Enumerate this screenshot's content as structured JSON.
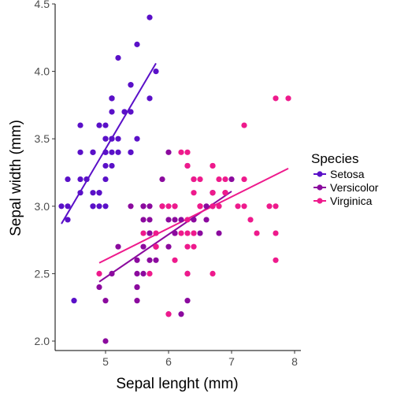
{
  "chart_data": {
    "type": "scatter",
    "title": "",
    "xlabel": "Sepal lenght (mm)",
    "ylabel": "Sepal width (mm)",
    "xlim": [
      4.2,
      8.1
    ],
    "ylim": [
      1.93,
      4.5
    ],
    "xticks": [
      "5",
      "6",
      "7",
      "8"
    ],
    "yticks": [
      "2.0",
      "2.5",
      "3.0",
      "3.5",
      "4.0",
      "4.5"
    ],
    "grid": false,
    "legend": {
      "title": "Species",
      "position": "right"
    },
    "series": [
      {
        "name": "Setosa",
        "color": "#5a10c8",
        "points": [
          [
            5.1,
            3.5
          ],
          [
            4.9,
            3.0
          ],
          [
            4.7,
            3.2
          ],
          [
            4.6,
            3.1
          ],
          [
            5.0,
            3.6
          ],
          [
            5.4,
            3.9
          ],
          [
            4.6,
            3.4
          ],
          [
            5.0,
            3.4
          ],
          [
            4.4,
            2.9
          ],
          [
            4.9,
            3.1
          ],
          [
            5.4,
            3.7
          ],
          [
            4.8,
            3.4
          ],
          [
            4.8,
            3.0
          ],
          [
            4.3,
            3.0
          ],
          [
            5.8,
            4.0
          ],
          [
            5.7,
            4.4
          ],
          [
            5.4,
            3.9
          ],
          [
            5.1,
            3.5
          ],
          [
            5.7,
            3.8
          ],
          [
            5.1,
            3.8
          ],
          [
            5.4,
            3.4
          ],
          [
            5.1,
            3.7
          ],
          [
            4.6,
            3.6
          ],
          [
            5.1,
            3.3
          ],
          [
            4.8,
            3.4
          ],
          [
            5.0,
            3.0
          ],
          [
            5.0,
            3.4
          ],
          [
            5.2,
            3.5
          ],
          [
            5.2,
            3.4
          ],
          [
            4.7,
            3.2
          ],
          [
            4.8,
            3.1
          ],
          [
            5.4,
            3.4
          ],
          [
            5.2,
            4.1
          ],
          [
            5.5,
            4.2
          ],
          [
            4.9,
            3.1
          ],
          [
            5.0,
            3.2
          ],
          [
            5.5,
            3.5
          ],
          [
            4.9,
            3.6
          ],
          [
            4.4,
            3.0
          ],
          [
            5.1,
            3.4
          ],
          [
            5.0,
            3.5
          ],
          [
            4.5,
            2.3
          ],
          [
            4.4,
            3.2
          ],
          [
            5.0,
            3.5
          ],
          [
            5.1,
            3.8
          ],
          [
            4.8,
            3.0
          ],
          [
            5.1,
            3.8
          ],
          [
            4.6,
            3.2
          ],
          [
            5.3,
            3.7
          ],
          [
            5.0,
            3.3
          ]
        ],
        "fit": [
          [
            4.3,
            2.87
          ],
          [
            5.8,
            4.06
          ]
        ]
      },
      {
        "name": "Versicolor",
        "color": "#8b0a9e",
        "points": [
          [
            7.0,
            3.2
          ],
          [
            6.4,
            3.2
          ],
          [
            6.9,
            3.1
          ],
          [
            5.5,
            2.3
          ],
          [
            6.5,
            2.8
          ],
          [
            5.7,
            2.8
          ],
          [
            6.3,
            3.3
          ],
          [
            4.9,
            2.4
          ],
          [
            6.6,
            2.9
          ],
          [
            5.2,
            2.7
          ],
          [
            5.0,
            2.0
          ],
          [
            5.9,
            3.0
          ],
          [
            6.0,
            2.2
          ],
          [
            6.1,
            2.9
          ],
          [
            5.6,
            2.9
          ],
          [
            6.7,
            3.1
          ],
          [
            5.6,
            3.0
          ],
          [
            5.8,
            2.7
          ],
          [
            6.2,
            2.2
          ],
          [
            5.6,
            2.5
          ],
          [
            5.9,
            3.2
          ],
          [
            6.1,
            2.8
          ],
          [
            6.3,
            2.5
          ],
          [
            6.1,
            2.8
          ],
          [
            6.4,
            2.9
          ],
          [
            6.6,
            3.0
          ],
          [
            6.8,
            2.8
          ],
          [
            6.7,
            3.0
          ],
          [
            6.0,
            2.9
          ],
          [
            5.7,
            2.6
          ],
          [
            5.5,
            2.4
          ],
          [
            5.5,
            2.4
          ],
          [
            5.8,
            2.7
          ],
          [
            6.0,
            2.7
          ],
          [
            5.4,
            3.0
          ],
          [
            6.0,
            3.4
          ],
          [
            6.7,
            3.1
          ],
          [
            6.3,
            2.3
          ],
          [
            5.6,
            3.0
          ],
          [
            5.5,
            2.5
          ],
          [
            5.5,
            2.6
          ],
          [
            6.1,
            3.0
          ],
          [
            5.8,
            2.6
          ],
          [
            5.0,
            2.3
          ],
          [
            5.6,
            2.7
          ],
          [
            5.7,
            3.0
          ],
          [
            5.7,
            2.9
          ],
          [
            6.2,
            2.9
          ],
          [
            5.1,
            2.5
          ],
          [
            5.7,
            2.8
          ]
        ],
        "fit": [
          [
            4.9,
            2.44
          ],
          [
            7.0,
            3.11
          ]
        ]
      },
      {
        "name": "Virginica",
        "color": "#ee1a8c",
        "points": [
          [
            6.3,
            3.3
          ],
          [
            5.8,
            2.7
          ],
          [
            7.1,
            3.0
          ],
          [
            6.3,
            2.9
          ],
          [
            6.5,
            3.0
          ],
          [
            7.6,
            3.0
          ],
          [
            4.9,
            2.5
          ],
          [
            7.3,
            2.9
          ],
          [
            6.7,
            2.5
          ],
          [
            7.2,
            3.6
          ],
          [
            6.5,
            3.2
          ],
          [
            6.4,
            2.7
          ],
          [
            6.8,
            3.0
          ],
          [
            5.7,
            2.5
          ],
          [
            5.8,
            2.8
          ],
          [
            6.4,
            3.2
          ],
          [
            6.5,
            3.0
          ],
          [
            7.7,
            3.8
          ],
          [
            7.7,
            2.6
          ],
          [
            6.0,
            2.2
          ],
          [
            6.9,
            3.2
          ],
          [
            5.6,
            2.8
          ],
          [
            7.7,
            2.8
          ],
          [
            6.3,
            2.7
          ],
          [
            6.7,
            3.3
          ],
          [
            7.2,
            3.2
          ],
          [
            6.2,
            2.8
          ],
          [
            6.1,
            3.0
          ],
          [
            6.4,
            2.8
          ],
          [
            7.2,
            3.0
          ],
          [
            7.4,
            2.8
          ],
          [
            7.9,
            3.8
          ],
          [
            6.4,
            2.8
          ],
          [
            6.3,
            2.8
          ],
          [
            6.1,
            2.6
          ],
          [
            7.7,
            3.0
          ],
          [
            6.3,
            3.4
          ],
          [
            6.4,
            3.1
          ],
          [
            6.0,
            3.0
          ],
          [
            6.9,
            3.1
          ],
          [
            6.7,
            3.1
          ],
          [
            6.9,
            3.1
          ],
          [
            5.8,
            2.7
          ],
          [
            6.8,
            3.2
          ],
          [
            6.7,
            3.3
          ],
          [
            6.7,
            3.0
          ],
          [
            6.3,
            2.5
          ],
          [
            6.5,
            3.0
          ],
          [
            6.2,
            3.4
          ],
          [
            5.9,
            3.0
          ]
        ],
        "fit": [
          [
            4.9,
            2.58
          ],
          [
            7.9,
            3.28
          ]
        ]
      }
    ]
  }
}
